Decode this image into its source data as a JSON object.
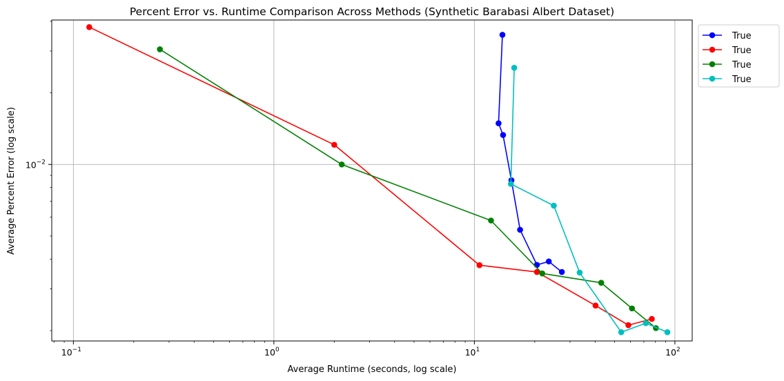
{
  "chart_data": {
    "type": "line",
    "title": "Percent Error vs. Runtime Comparison Across Methods (Synthetic Barabasi Albert Dataset)",
    "xlabel": "Average Runtime (seconds, log scale)",
    "ylabel": "Average Percent Error (log scale)",
    "xscale": "log",
    "yscale": "log",
    "xlim": [
      0.078,
      122
    ],
    "ylim": [
      0.00181,
      0.0405
    ],
    "grid": true,
    "legend_position": "outside-top-right",
    "x_ticks": [
      {
        "value": 0.1,
        "base": "10",
        "exp": "−1"
      },
      {
        "value": 1,
        "base": "10",
        "exp": "0"
      },
      {
        "value": 10,
        "base": "10",
        "exp": "1"
      },
      {
        "value": 100,
        "base": "10",
        "exp": "2"
      }
    ],
    "y_ticks": [
      {
        "value": 0.01,
        "base": "10",
        "exp": "−2"
      }
    ],
    "series": [
      {
        "name": "True",
        "color": "#0000ff",
        "points": [
          {
            "x": 13.8,
            "y": 0.0351
          },
          {
            "x": 13.2,
            "y": 0.0149
          },
          {
            "x": 13.9,
            "y": 0.0133
          },
          {
            "x": 15.3,
            "y": 0.00858
          },
          {
            "x": 16.9,
            "y": 0.00531
          },
          {
            "x": 20.5,
            "y": 0.00378
          },
          {
            "x": 23.5,
            "y": 0.00391
          },
          {
            "x": 27.3,
            "y": 0.00353
          }
        ]
      },
      {
        "name": "True",
        "color": "#ff0000",
        "points": [
          {
            "x": 0.12,
            "y": 0.0378
          },
          {
            "x": 2.0,
            "y": 0.0121
          },
          {
            "x": 10.6,
            "y": 0.00377
          },
          {
            "x": 20.5,
            "y": 0.00353
          },
          {
            "x": 40.2,
            "y": 0.00255
          },
          {
            "x": 58.6,
            "y": 0.00211
          },
          {
            "x": 76.7,
            "y": 0.00224
          }
        ]
      },
      {
        "name": "True",
        "color": "#008000",
        "points": [
          {
            "x": 0.27,
            "y": 0.0305
          },
          {
            "x": 2.18,
            "y": 0.01
          },
          {
            "x": 12.1,
            "y": 0.00581
          },
          {
            "x": 21.8,
            "y": 0.00348
          },
          {
            "x": 42.9,
            "y": 0.00318
          },
          {
            "x": 61.1,
            "y": 0.00248
          },
          {
            "x": 80.4,
            "y": 0.00205
          }
        ]
      },
      {
        "name": "True",
        "color": "#00bfbf",
        "points": [
          {
            "x": 15.8,
            "y": 0.0255
          },
          {
            "x": 15.2,
            "y": 0.00828
          },
          {
            "x": 24.9,
            "y": 0.00671
          },
          {
            "x": 33.5,
            "y": 0.00351
          },
          {
            "x": 54.0,
            "y": 0.00197
          },
          {
            "x": 71.6,
            "y": 0.00215
          },
          {
            "x": 91.7,
            "y": 0.00197
          }
        ]
      }
    ]
  }
}
